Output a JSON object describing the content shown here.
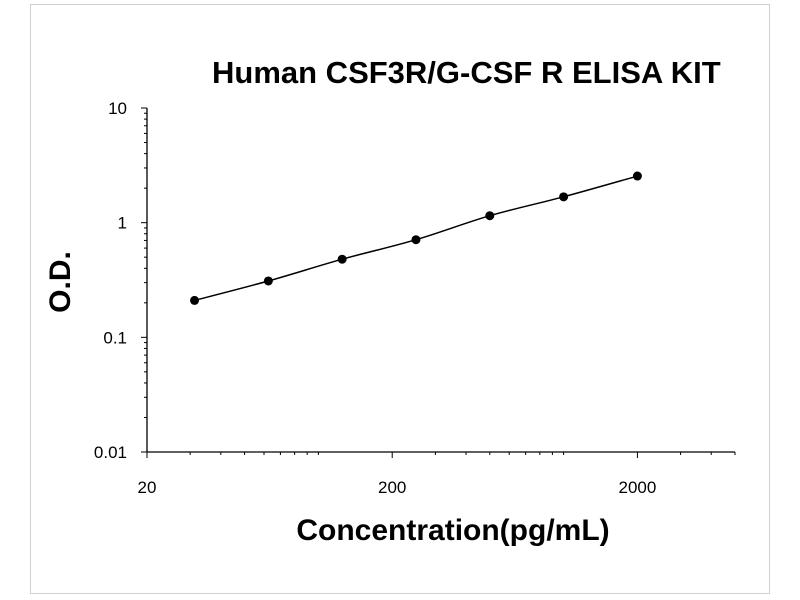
{
  "chart_data": {
    "type": "line",
    "title": "Human CSF3R/G-CSF R ELISA KIT",
    "xlabel": "Concentration(pg/mL)",
    "ylabel": "O.D.",
    "x_scale": "log",
    "y_scale": "log",
    "xlim": [
      20,
      5000
    ],
    "ylim": [
      0.01,
      10
    ],
    "x_ticks": [
      20,
      200,
      2000
    ],
    "x_tick_labels": [
      "20",
      "200",
      "2000"
    ],
    "y_ticks": [
      0.01,
      0.1,
      1,
      10
    ],
    "y_tick_labels": [
      "0.01",
      "0.1",
      "1",
      "10"
    ],
    "grid": false,
    "legend": "none",
    "series": [
      {
        "marker": "circle",
        "line": "smooth",
        "color": "#000000",
        "x": [
          31.25,
          62.5,
          125,
          250,
          500,
          1000,
          2000
        ],
        "y": [
          0.21,
          0.31,
          0.48,
          0.71,
          1.15,
          1.68,
          2.55
        ]
      }
    ]
  }
}
